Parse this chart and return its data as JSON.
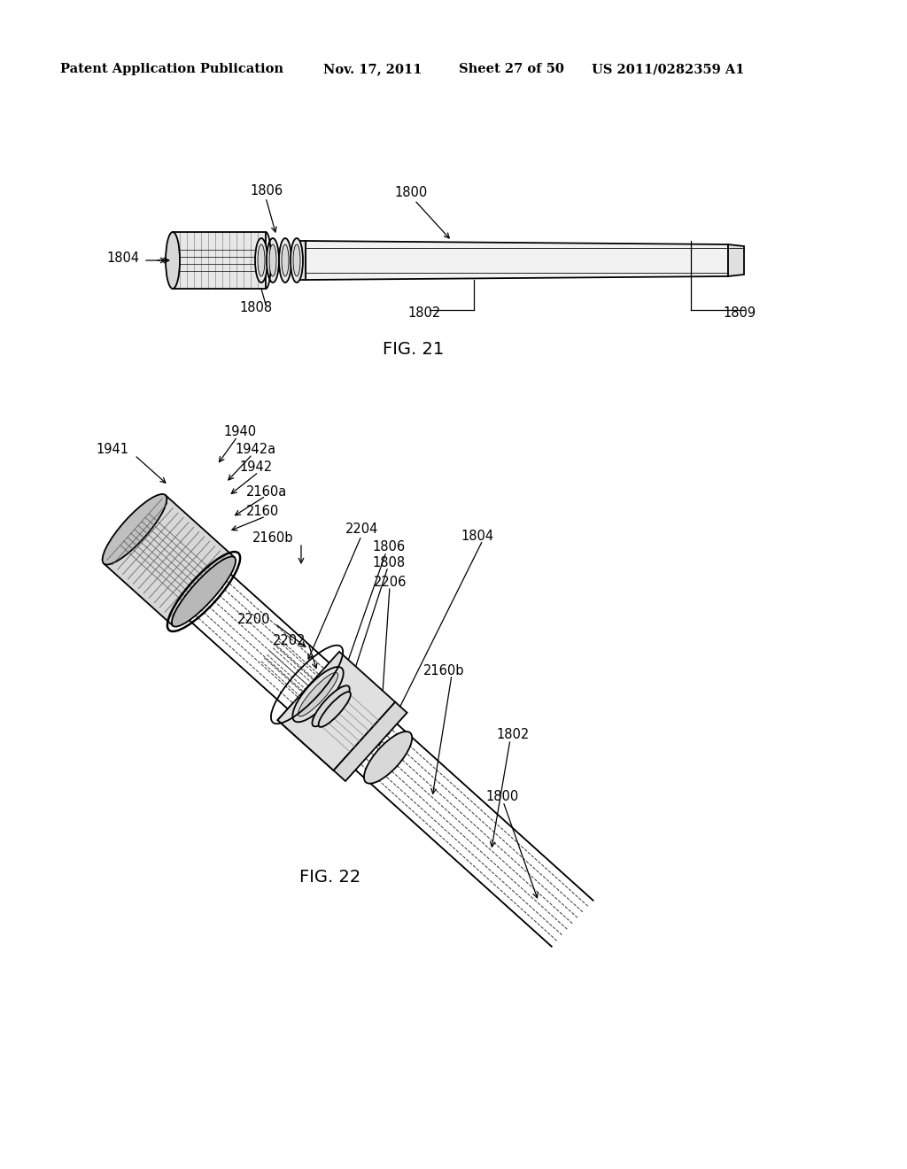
{
  "bg_color": "#ffffff",
  "fig_width": 10.24,
  "fig_height": 13.2,
  "header_text": "Patent Application Publication",
  "header_date": "Nov. 17, 2011",
  "header_sheet": "Sheet 27 of 50",
  "header_patent": "US 2011/0282359 A1",
  "fig21_label": "FIG. 21",
  "fig22_label": "FIG. 22",
  "text_color": "#000000",
  "line_color": "#000000",
  "label_fontsize": 10.5,
  "header_fontsize": 10.5
}
